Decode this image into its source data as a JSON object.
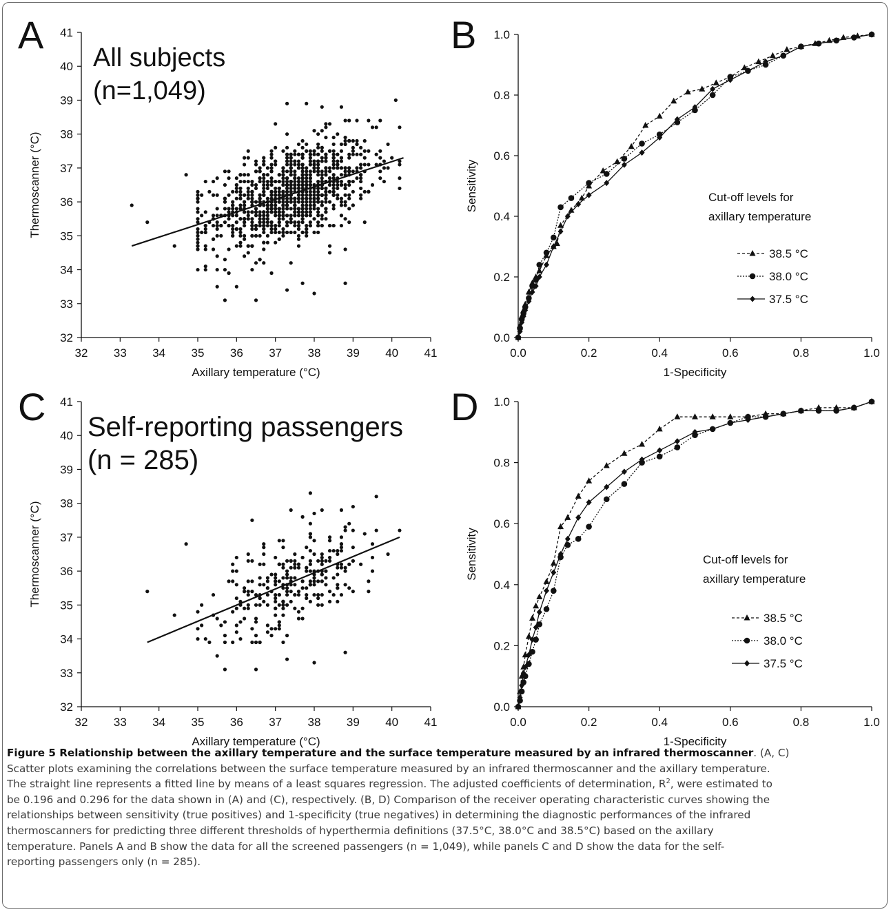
{
  "chart_data": [
    {
      "panel": "A",
      "type": "scatter",
      "annotation": [
        "All subjects",
        "(n=1,049)"
      ],
      "xlabel": "Axillary temperature (°C)",
      "ylabel": "Thermoscanner (°C)",
      "xlim": [
        32,
        41
      ],
      "ylim": [
        32,
        41
      ],
      "xticks": [
        "32",
        "33",
        "34",
        "35",
        "36",
        "37",
        "38",
        "39",
        "40",
        "41"
      ],
      "yticks": [
        "32",
        "33",
        "34",
        "35",
        "36",
        "37",
        "38",
        "39",
        "40",
        "41"
      ],
      "n_points": 1049,
      "regression_line": {
        "x": [
          33.3,
          40.3
        ],
        "y": [
          34.7,
          37.3
        ]
      },
      "outlier_points": [
        [
          33.3,
          35.9
        ],
        [
          33.7,
          35.4
        ],
        [
          34.4,
          34.7
        ],
        [
          34.7,
          36.8
        ],
        [
          35.0,
          34.0
        ],
        [
          35.5,
          33.5
        ],
        [
          35.7,
          33.1
        ],
        [
          36.0,
          33.5
        ],
        [
          36.5,
          33.1
        ],
        [
          37.3,
          33.4
        ],
        [
          37.7,
          33.6
        ],
        [
          38.0,
          33.3
        ],
        [
          38.8,
          33.6
        ],
        [
          37.0,
          38.3
        ],
        [
          37.3,
          38.9
        ],
        [
          37.8,
          38.9
        ],
        [
          38.2,
          38.8
        ],
        [
          38.7,
          38.8
        ],
        [
          40.1,
          39.0
        ],
        [
          39.6,
          38.2
        ]
      ],
      "grid": false
    },
    {
      "panel": "B",
      "type": "line",
      "xlabel": "1-Specificity",
      "ylabel": "Sensitivity",
      "xlim": [
        0,
        1
      ],
      "ylim": [
        0,
        1
      ],
      "xticks": [
        "0.0",
        "0.2",
        "0.4",
        "0.6",
        "0.8",
        "1.0"
      ],
      "yticks": [
        "0.0",
        "0.2",
        "0.4",
        "0.6",
        "0.8",
        "1.0"
      ],
      "legend_title": [
        "Cut-off levels for",
        "axillary temperature"
      ],
      "series": [
        {
          "name": "38.5 °C",
          "marker": "triangle",
          "dash": "4,3",
          "x": [
            0,
            0.005,
            0.01,
            0.015,
            0.02,
            0.03,
            0.04,
            0.05,
            0.06,
            0.08,
            0.1,
            0.11,
            0.12,
            0.15,
            0.18,
            0.2,
            0.24,
            0.28,
            0.32,
            0.36,
            0.4,
            0.44,
            0.48,
            0.52,
            0.56,
            0.6,
            0.64,
            0.68,
            0.72,
            0.76,
            0.8,
            0.84,
            0.88,
            0.92,
            0.96,
            1.0
          ],
          "y": [
            0,
            0.04,
            0.07,
            0.09,
            0.11,
            0.15,
            0.18,
            0.2,
            0.22,
            0.27,
            0.3,
            0.31,
            0.37,
            0.42,
            0.46,
            0.5,
            0.55,
            0.58,
            0.63,
            0.7,
            0.73,
            0.78,
            0.81,
            0.82,
            0.84,
            0.86,
            0.89,
            0.91,
            0.93,
            0.95,
            0.96,
            0.97,
            0.98,
            0.99,
            0.995,
            1.0
          ]
        },
        {
          "name": "38.0 °C",
          "marker": "circle",
          "dash": "2,2",
          "x": [
            0,
            0.005,
            0.01,
            0.015,
            0.02,
            0.03,
            0.04,
            0.05,
            0.06,
            0.08,
            0.1,
            0.12,
            0.15,
            0.2,
            0.25,
            0.3,
            0.35,
            0.4,
            0.45,
            0.5,
            0.55,
            0.6,
            0.65,
            0.7,
            0.75,
            0.8,
            0.85,
            0.9,
            0.95,
            1.0
          ],
          "y": [
            0,
            0.03,
            0.06,
            0.08,
            0.1,
            0.13,
            0.17,
            0.19,
            0.24,
            0.28,
            0.33,
            0.43,
            0.46,
            0.51,
            0.54,
            0.59,
            0.64,
            0.67,
            0.71,
            0.75,
            0.8,
            0.86,
            0.88,
            0.9,
            0.93,
            0.96,
            0.97,
            0.98,
            0.99,
            1.0
          ]
        },
        {
          "name": "37.5 °C",
          "marker": "diamond",
          "dash": "",
          "x": [
            0,
            0.005,
            0.01,
            0.015,
            0.02,
            0.03,
            0.04,
            0.05,
            0.06,
            0.08,
            0.1,
            0.12,
            0.14,
            0.17,
            0.2,
            0.25,
            0.3,
            0.35,
            0.4,
            0.45,
            0.5,
            0.55,
            0.6,
            0.65,
            0.7,
            0.75,
            0.8,
            0.85,
            0.9,
            0.95,
            1.0
          ],
          "y": [
            0,
            0.02,
            0.05,
            0.07,
            0.09,
            0.12,
            0.15,
            0.17,
            0.2,
            0.24,
            0.3,
            0.35,
            0.4,
            0.44,
            0.47,
            0.51,
            0.57,
            0.61,
            0.66,
            0.72,
            0.76,
            0.82,
            0.85,
            0.88,
            0.91,
            0.93,
            0.96,
            0.97,
            0.98,
            0.99,
            1.0
          ]
        }
      ],
      "grid": false
    },
    {
      "panel": "C",
      "type": "scatter",
      "annotation": [
        "Self-reporting passengers",
        "(n = 285)"
      ],
      "xlabel": "Axillary temperature (°C)",
      "ylabel": "Thermoscanner (°C)",
      "xlim": [
        32,
        41
      ],
      "ylim": [
        32,
        41
      ],
      "xticks": [
        "32",
        "33",
        "34",
        "35",
        "36",
        "37",
        "38",
        "39",
        "40",
        "41"
      ],
      "yticks": [
        "32",
        "33",
        "34",
        "35",
        "36",
        "37",
        "38",
        "39",
        "40",
        "41"
      ],
      "n_points": 285,
      "regression_line": {
        "x": [
          33.7,
          40.2
        ],
        "y": [
          33.9,
          37.0
        ]
      },
      "outlier_points": [
        [
          33.7,
          35.4
        ],
        [
          34.4,
          34.7
        ],
        [
          34.7,
          36.8
        ],
        [
          35.0,
          34.0
        ],
        [
          35.5,
          33.5
        ],
        [
          35.7,
          33.1
        ],
        [
          36.5,
          33.1
        ],
        [
          37.3,
          33.4
        ],
        [
          38.0,
          33.3
        ],
        [
          38.8,
          33.6
        ],
        [
          37.9,
          38.3
        ],
        [
          39.6,
          38.2
        ],
        [
          39.0,
          37.9
        ],
        [
          37.4,
          37.8
        ],
        [
          38.7,
          37.8
        ]
      ],
      "grid": false
    },
    {
      "panel": "D",
      "type": "line",
      "xlabel": "1-Specificity",
      "ylabel": "Sensitivity",
      "xlim": [
        0,
        1
      ],
      "ylim": [
        0,
        1
      ],
      "xticks": [
        "0.0",
        "0.2",
        "0.4",
        "0.6",
        "0.8",
        "1.0"
      ],
      "yticks": [
        "0.0",
        "0.2",
        "0.4",
        "0.6",
        "0.8",
        "1.0"
      ],
      "legend_title": [
        "Cut-off levels for",
        "axillary temperature"
      ],
      "series": [
        {
          "name": "38.5 °C",
          "marker": "triangle",
          "dash": "4,3",
          "x": [
            0,
            0.005,
            0.01,
            0.015,
            0.02,
            0.03,
            0.04,
            0.05,
            0.06,
            0.08,
            0.1,
            0.12,
            0.14,
            0.17,
            0.2,
            0.25,
            0.3,
            0.35,
            0.4,
            0.45,
            0.5,
            0.55,
            0.6,
            0.65,
            0.7,
            0.75,
            0.8,
            0.85,
            0.9,
            0.95,
            1.0
          ],
          "y": [
            0,
            0.05,
            0.1,
            0.13,
            0.17,
            0.23,
            0.29,
            0.33,
            0.36,
            0.41,
            0.47,
            0.59,
            0.62,
            0.69,
            0.74,
            0.79,
            0.83,
            0.86,
            0.91,
            0.95,
            0.95,
            0.95,
            0.95,
            0.95,
            0.96,
            0.96,
            0.97,
            0.98,
            0.98,
            0.98,
            1.0
          ]
        },
        {
          "name": "38.0 °C",
          "marker": "circle",
          "dash": "2,2",
          "x": [
            0,
            0.005,
            0.01,
            0.015,
            0.02,
            0.03,
            0.04,
            0.05,
            0.06,
            0.08,
            0.1,
            0.12,
            0.14,
            0.17,
            0.2,
            0.25,
            0.3,
            0.35,
            0.4,
            0.45,
            0.5,
            0.55,
            0.6,
            0.65,
            0.7,
            0.75,
            0.8,
            0.85,
            0.9,
            0.95,
            1.0
          ],
          "y": [
            0,
            0.02,
            0.05,
            0.08,
            0.1,
            0.14,
            0.18,
            0.22,
            0.27,
            0.32,
            0.38,
            0.49,
            0.53,
            0.55,
            0.59,
            0.68,
            0.73,
            0.8,
            0.82,
            0.85,
            0.89,
            0.91,
            0.93,
            0.95,
            0.95,
            0.96,
            0.97,
            0.97,
            0.97,
            0.98,
            1.0
          ]
        },
        {
          "name": "37.5 °C",
          "marker": "diamond",
          "dash": "",
          "x": [
            0,
            0.005,
            0.01,
            0.015,
            0.02,
            0.03,
            0.04,
            0.05,
            0.06,
            0.08,
            0.1,
            0.12,
            0.14,
            0.17,
            0.2,
            0.25,
            0.3,
            0.35,
            0.4,
            0.45,
            0.5,
            0.55,
            0.6,
            0.65,
            0.7,
            0.75,
            0.8,
            0.85,
            0.9,
            0.95,
            1.0
          ],
          "y": [
            0,
            0.03,
            0.07,
            0.11,
            0.13,
            0.17,
            0.22,
            0.26,
            0.31,
            0.38,
            0.44,
            0.5,
            0.55,
            0.62,
            0.67,
            0.72,
            0.77,
            0.81,
            0.84,
            0.87,
            0.9,
            0.91,
            0.93,
            0.94,
            0.95,
            0.96,
            0.97,
            0.97,
            0.97,
            0.98,
            1.0
          ]
        }
      ],
      "grid": false
    }
  ],
  "panels": {
    "A": {
      "letter": "A"
    },
    "B": {
      "letter": "B"
    },
    "C": {
      "letter": "C"
    },
    "D": {
      "letter": "D"
    }
  },
  "caption": {
    "bold": "Figure 5 Relationship between the axillary temperature and the surface temperature measured by an infrared thermoscanner",
    "line1_rest": ". (A, C)",
    "line2": "Scatter plots examining the correlations between the surface temperature measured by an infrared thermoscanner and the axillary temperature.",
    "line3a": "The straight line represents a fitted line by means of a least squares regression. The adjusted coefficients of determination, R",
    "line3sup": "2",
    "line3b": ", were estimated to",
    "line4": "be 0.196 and 0.296 for the data shown in (A) and (C), respectively. (B, D) Comparison of the receiver operating characteristic curves showing the",
    "line5": "relationships between sensitivity (true positives) and 1-specificity (true negatives) in determining the diagnostic performances of the infrared",
    "line6": "thermoscanners for predicting three different thresholds of hyperthermia definitions (37.5°C, 38.0°C and 38.5°C) based on the axillary",
    "line7": "temperature. Panels A and B show the data for all the screened passengers (n = 1,049), while panels C and D show the data for the self-",
    "line8": "reporting passengers only (n = 285)."
  }
}
